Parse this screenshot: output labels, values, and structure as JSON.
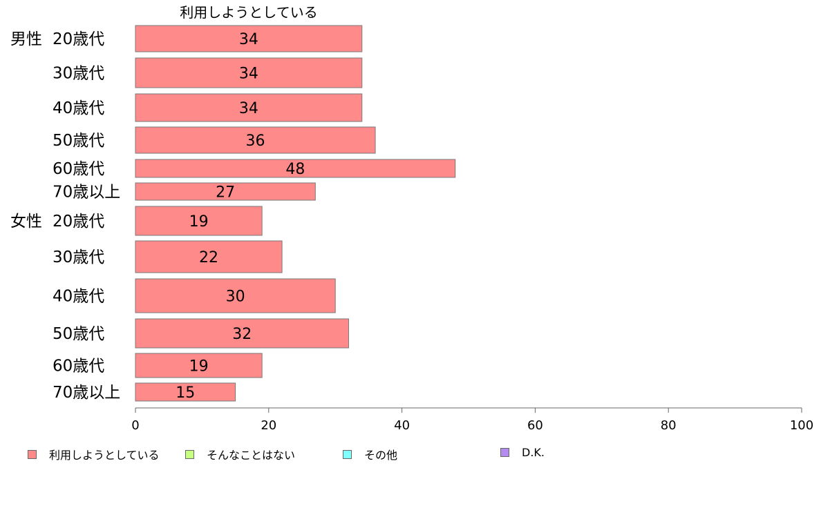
{
  "chart_data": {
    "type": "bar",
    "orientation": "horizontal",
    "title": "利用しようとしている",
    "xlim": [
      0,
      100
    ],
    "x_ticks": [
      "0",
      "20",
      "40",
      "60",
      "80",
      "100"
    ],
    "groups": [
      {
        "label": "男性",
        "categories": [
          "20歳代",
          "30歳代",
          "40歳代",
          "50歳代",
          "60歳代",
          "70歳以上"
        ],
        "values": [
          34,
          34,
          34,
          36,
          48,
          27
        ]
      },
      {
        "label": "女性",
        "categories": [
          "20歳代",
          "30歳代",
          "40歳代",
          "50歳代",
          "60歳代",
          "70歳以上"
        ],
        "values": [
          19,
          22,
          30,
          32,
          19,
          15
        ]
      }
    ],
    "series": [
      {
        "name": "利用しようとしている",
        "color": "#ff8a8a"
      },
      {
        "name": "そんなことはない",
        "color": "#c8ff80"
      },
      {
        "name": "その他",
        "color": "#80ffff"
      },
      {
        "name": "D.K.",
        "color": "#b48cf0"
      }
    ],
    "legend_position": "bottom",
    "grid": false
  }
}
